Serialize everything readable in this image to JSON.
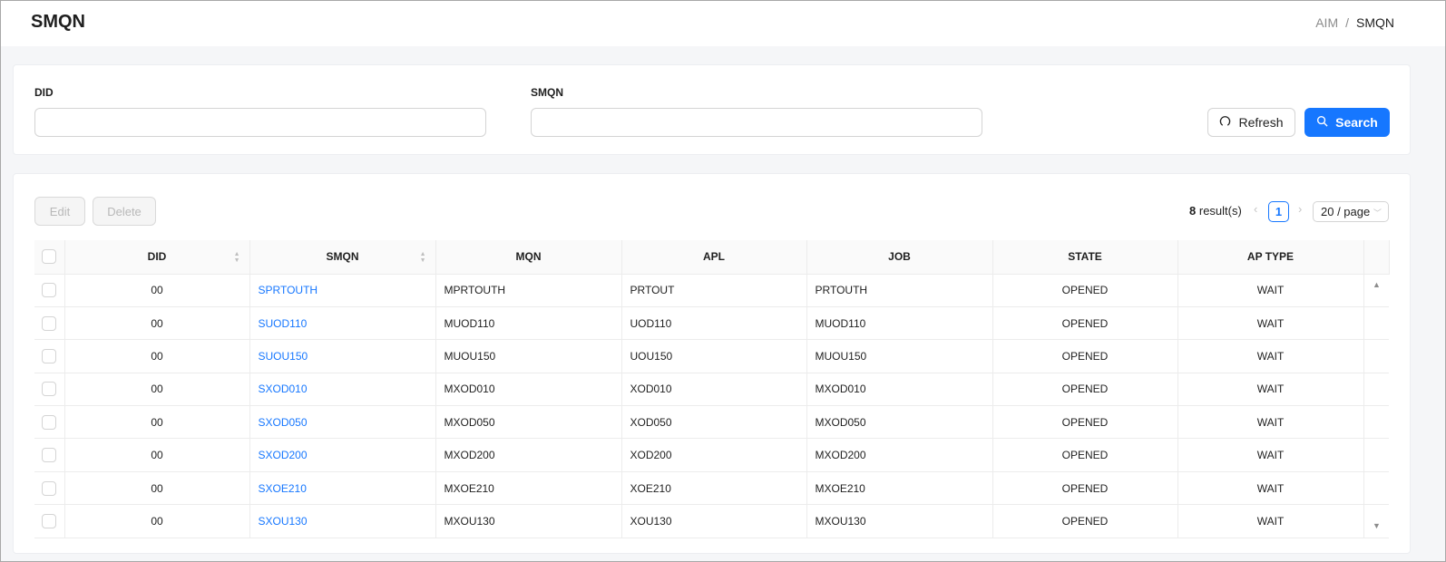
{
  "header": {
    "title": "SMQN",
    "breadcrumb": [
      "AIM",
      "SMQN"
    ],
    "separator": "/"
  },
  "filters": {
    "did_label": "DID",
    "did_value": "",
    "smqn_label": "SMQN",
    "smqn_value": "",
    "refresh_label": "Refresh",
    "search_label": "Search"
  },
  "toolbar": {
    "edit_label": "Edit",
    "delete_label": "Delete",
    "result_count": "8",
    "result_suffix": "result(s)",
    "current_page": "1",
    "page_size": "20 / page"
  },
  "colors": {
    "accent": "#1677ff"
  },
  "table": {
    "columns": [
      "DID",
      "SMQN",
      "MQN",
      "APL",
      "JOB",
      "STATE",
      "AP TYPE"
    ],
    "rows": [
      [
        "00",
        "SPRTOUTH",
        "MPRTOUTH",
        "PRTOUT",
        "PRTOUTH",
        "OPENED",
        "WAIT"
      ],
      [
        "00",
        "SUOD110",
        "MUOD110",
        "UOD110",
        "MUOD110",
        "OPENED",
        "WAIT"
      ],
      [
        "00",
        "SUOU150",
        "MUOU150",
        "UOU150",
        "MUOU150",
        "OPENED",
        "WAIT"
      ],
      [
        "00",
        "SXOD010",
        "MXOD010",
        "XOD010",
        "MXOD010",
        "OPENED",
        "WAIT"
      ],
      [
        "00",
        "SXOD050",
        "MXOD050",
        "XOD050",
        "MXOD050",
        "OPENED",
        "WAIT"
      ],
      [
        "00",
        "SXOD200",
        "MXOD200",
        "XOD200",
        "MXOD200",
        "OPENED",
        "WAIT"
      ],
      [
        "00",
        "SXOE210",
        "MXOE210",
        "XOE210",
        "MXOE210",
        "OPENED",
        "WAIT"
      ],
      [
        "00",
        "SXOU130",
        "MXOU130",
        "XOU130",
        "MXOU130",
        "OPENED",
        "WAIT"
      ]
    ]
  }
}
